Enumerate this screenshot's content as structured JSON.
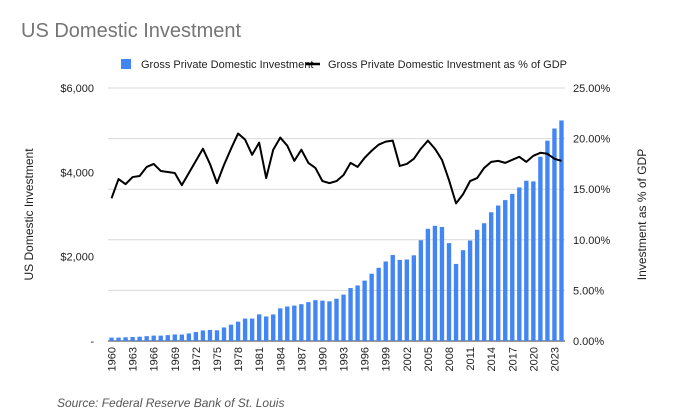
{
  "chart_data": {
    "type": "bar",
    "title": "US Domestic Investment",
    "source": "Source: Federal Reserve Bank of St. Louis",
    "ylabel": "US Domestic Investment",
    "y2label": "Investment as % of GDP",
    "xlabel": "",
    "ylim": [
      0,
      6000
    ],
    "y2lim": [
      0,
      25
    ],
    "y_ticks": [
      "-",
      "$2,000",
      "$4,000",
      "$6,000"
    ],
    "y2_ticks": [
      "0.00%",
      "5.00%",
      "10.00%",
      "15.00%",
      "20.00%",
      "25.00%"
    ],
    "grid": true,
    "legend_position": "top",
    "categories": [
      1960,
      1961,
      1962,
      1963,
      1964,
      1965,
      1966,
      1967,
      1968,
      1969,
      1970,
      1971,
      1972,
      1973,
      1974,
      1975,
      1976,
      1977,
      1978,
      1979,
      1980,
      1981,
      1982,
      1983,
      1984,
      1985,
      1986,
      1987,
      1988,
      1989,
      1990,
      1991,
      1992,
      1993,
      1994,
      1995,
      1996,
      1997,
      1998,
      1999,
      2000,
      2001,
      2002,
      2003,
      2004,
      2005,
      2006,
      2007,
      2008,
      2009,
      2010,
      2011,
      2012,
      2013,
      2014,
      2015,
      2016,
      2017,
      2018,
      2019,
      2020,
      2021,
      2022,
      2023,
      2024
    ],
    "tick_labels": [
      "1960",
      "1963",
      "1966",
      "1969",
      "1972",
      "1975",
      "1978",
      "1981",
      "1984",
      "1987",
      "1990",
      "1993",
      "1996",
      "1999",
      "2002",
      "2005",
      "2008",
      "2011",
      "2014",
      "2017",
      "2020",
      "2023"
    ],
    "series": [
      {
        "name": "Gross Private Domestic Investment",
        "type": "bar",
        "axis": "left",
        "color": "#4285f4",
        "values": [
          80,
          80,
          88,
          95,
          102,
          115,
          128,
          127,
          139,
          155,
          153,
          180,
          212,
          250,
          261,
          254,
          321,
          387,
          459,
          532,
          532,
          631,
          582,
          630,
          774,
          818,
          840,
          873,
          921,
          968,
          956,
          941,
          1003,
          1100,
          1256,
          1317,
          1432,
          1596,
          1736,
          1886,
          2039,
          1924,
          1933,
          2032,
          2390,
          2661,
          2732,
          2704,
          2322,
          1828,
          2153,
          2383,
          2637,
          2793,
          3053,
          3213,
          3341,
          3489,
          3641,
          3801,
          3785,
          4369,
          4751,
          5039,
          5230
        ]
      },
      {
        "name": "Gross Private Domestic Investment as % of GDP",
        "type": "line",
        "axis": "right",
        "color": "#000000",
        "values": [
          14.1,
          16.0,
          15.5,
          16.2,
          16.3,
          17.2,
          17.5,
          16.8,
          16.7,
          16.6,
          15.4,
          16.6,
          17.8,
          19.0,
          17.5,
          15.6,
          17.4,
          19.0,
          20.5,
          19.9,
          18.4,
          19.6,
          16.1,
          18.9,
          20.1,
          19.3,
          17.8,
          18.9,
          17.6,
          17.1,
          15.8,
          15.6,
          15.8,
          16.4,
          17.6,
          17.2,
          18.1,
          18.8,
          19.4,
          19.7,
          19.8,
          17.3,
          17.5,
          18.0,
          19.0,
          19.8,
          19.0,
          17.9,
          15.9,
          13.6,
          14.5,
          15.8,
          16.1,
          17.1,
          17.7,
          17.8,
          17.6,
          17.9,
          18.2,
          17.7,
          18.3,
          18.6,
          18.5,
          18.0,
          17.8
        ]
      }
    ]
  }
}
